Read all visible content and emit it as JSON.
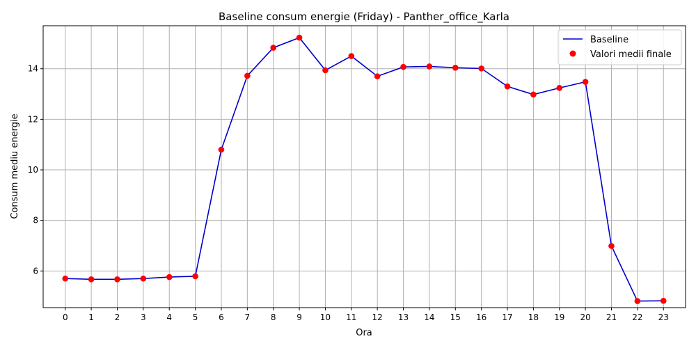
{
  "chart_data": {
    "type": "line",
    "title": "Baseline consum energie (Friday) - Panther_office_Karla",
    "xlabel": "Ora",
    "ylabel": "Consum mediu energie",
    "x": [
      0,
      1,
      2,
      3,
      4,
      5,
      6,
      7,
      8,
      9,
      10,
      11,
      12,
      13,
      14,
      15,
      16,
      17,
      18,
      19,
      20,
      21,
      22,
      23
    ],
    "x_tick_labels": [
      "0",
      "1",
      "2",
      "3",
      "4",
      "5",
      "6",
      "7",
      "8",
      "9",
      "10",
      "11",
      "12",
      "13",
      "14",
      "15",
      "16",
      "17",
      "18",
      "19",
      "20",
      "21",
      "22",
      "23"
    ],
    "xlim": [
      -0.85,
      23.85
    ],
    "ylim": [
      4.55,
      15.7
    ],
    "y_ticks": [
      6,
      8,
      10,
      12,
      14
    ],
    "y_tick_labels": [
      "6",
      "8",
      "10",
      "12",
      "14"
    ],
    "grid": true,
    "legend_position": "top-right",
    "series": [
      {
        "name": "Baseline",
        "kind": "line",
        "color": "#0000cc",
        "values": [
          5.7,
          5.67,
          5.67,
          5.7,
          5.76,
          5.79,
          10.8,
          13.72,
          14.83,
          15.23,
          13.94,
          14.5,
          13.7,
          14.07,
          14.09,
          14.04,
          14.01,
          13.3,
          12.98,
          13.24,
          13.48,
          6.99,
          4.81,
          4.82
        ]
      },
      {
        "name": "Valori medii finale",
        "kind": "scatter",
        "color": "#ff0000",
        "values": [
          5.7,
          5.67,
          5.67,
          5.7,
          5.76,
          5.79,
          10.8,
          13.72,
          14.83,
          15.23,
          13.94,
          14.5,
          13.7,
          14.07,
          14.09,
          14.04,
          14.01,
          13.3,
          12.98,
          13.24,
          13.48,
          6.99,
          4.81,
          4.82
        ]
      }
    ]
  }
}
